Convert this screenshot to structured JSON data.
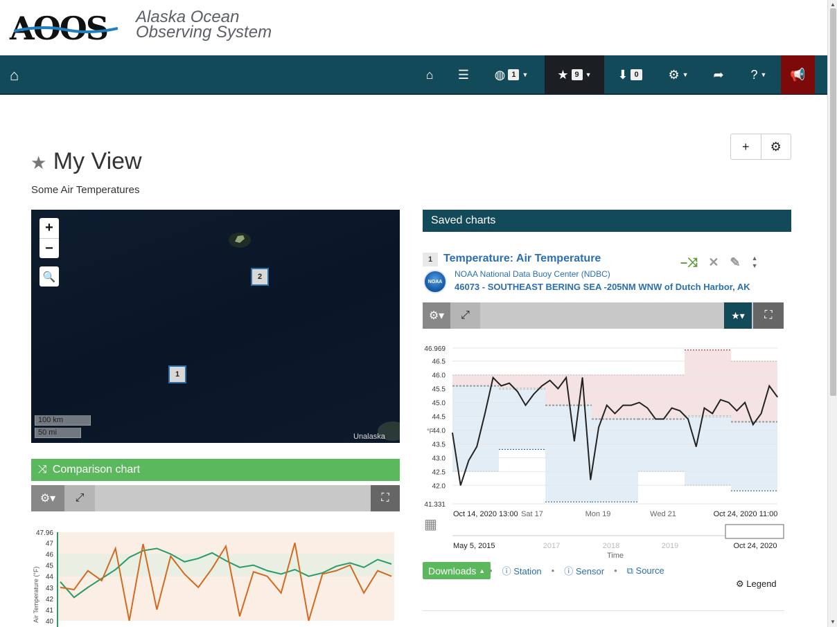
{
  "logo": {
    "mark": "AOOS",
    "line1": "Alaska Ocean",
    "line2": "Observing System"
  },
  "navbar": {
    "layers_count": "1",
    "favorites_count": "9",
    "downloads_count": "0",
    "icons": [
      "home-icon",
      "home-icon",
      "list-icon",
      "globe-icon",
      "star-icon",
      "download-icon",
      "gear-icon",
      "share-icon",
      "question-icon",
      "bullhorn-icon"
    ]
  },
  "view": {
    "title": "My View",
    "subtitle": "Some Air Temperatures"
  },
  "map": {
    "zoom_in": "+",
    "zoom_out": "−",
    "markers": [
      "1",
      "2"
    ],
    "scale_km": "100 km",
    "scale_mi": "50 mi",
    "place_label": "Unalaska"
  },
  "comparison": {
    "title": "Comparison chart"
  },
  "saved": {
    "header": "Saved charts",
    "number": "1",
    "title": "Temperature: Air Temperature",
    "provider": "NOAA National Data Buoy Center (NDBC)",
    "station": "46073 - SOUTHEAST BERING SEA -205NM WNW of Dutch Harbor, AK",
    "noaa_logo": "NOAA"
  },
  "actions": {
    "downloads": "Downloads",
    "station": "Station",
    "sensor": "Sensor",
    "source": "Source",
    "legend": "Legend"
  },
  "chart_data": [
    {
      "type": "line",
      "title": "Temperature: Air Temperature",
      "ylabel": "°F",
      "ylim": [
        41.331,
        46.969
      ],
      "yticks": [
        "46.969",
        "46.5",
        "46.0",
        "45.5",
        "45.0",
        "44.5",
        "44.0",
        "43.5",
        "43.0",
        "42.5",
        "42.0",
        "41.331"
      ],
      "xticks": [
        "Oct 14, 2020 13:00",
        "Sat 17",
        "Mon 19",
        "Wed 21",
        "Oct 24, 2020 11:00"
      ],
      "navigator_ticks": [
        "May 5, 2015",
        "2017",
        "2018",
        "2019",
        "Oct 24, 2020"
      ],
      "navigator_label": "Time",
      "x": [
        0,
        1,
        2,
        3,
        4,
        5,
        6,
        7,
        8,
        9,
        10,
        11,
        12,
        13,
        14,
        15,
        16,
        17,
        18,
        19,
        20,
        21,
        22,
        23,
        24,
        25,
        26,
        27,
        28,
        29,
        30,
        31,
        32,
        33,
        34,
        35,
        36,
        37,
        38,
        39,
        40
      ],
      "series": [
        {
          "name": "",
          "values": [
            43.9,
            42.0,
            42.9,
            43.4,
            44.6,
            45.9,
            45.6,
            45.7,
            45.4,
            44.9,
            45.3,
            45.6,
            45.8,
            45.5,
            45.9,
            43.6,
            45.9,
            42.2,
            44.1,
            44.9,
            44.6,
            44.9,
            44.9,
            45.0,
            44.8,
            44.4,
            44.4,
            44.8,
            44.7,
            44.4,
            43.4,
            44.8,
            44.6,
            45.1,
            45.0,
            44.7,
            45.0,
            44.2,
            44.6,
            45.6,
            45.2
          ]
        }
      ],
      "bands": {
        "max": [
          46.0,
          46.0,
          46.0,
          46.0,
          46.0,
          46.9,
          46.5
        ],
        "avg": [
          45.6,
          45.5,
          44.9,
          44.4,
          44.4,
          44.5,
          44.3
        ],
        "min": [
          42.5,
          43.3,
          41.4,
          41.4,
          42.5,
          42.0,
          41.8
        ]
      }
    },
    {
      "type": "line",
      "title": "Comparison chart",
      "ylabel": "Air Temperature (°F)",
      "yticks": [
        "47.96",
        "47",
        "46",
        "45",
        "44",
        "43",
        "42",
        "41",
        "40"
      ],
      "series": [
        {
          "name": "",
          "values": [
            43.5,
            42.1,
            43.0,
            43.8,
            44.6,
            45.7,
            46.3,
            46.5,
            46.0,
            45.3,
            45.6,
            46.1,
            45.4,
            44.8,
            45.0,
            44.5,
            44.2,
            44.6,
            44.0,
            44.3,
            44.9,
            45.2,
            44.8,
            45.5,
            45.1
          ]
        },
        {
          "name": "",
          "values": [
            43.0,
            42.8,
            44.5,
            43.6,
            46.5,
            40.0,
            46.9,
            41.0,
            45.8,
            44.2,
            43.0,
            44.7,
            46.7,
            40.4,
            44.4,
            44.0,
            42.5,
            47.0,
            40.0,
            44.2,
            44.5,
            45.0,
            42.5,
            44.5,
            44.0
          ]
        }
      ]
    }
  ]
}
